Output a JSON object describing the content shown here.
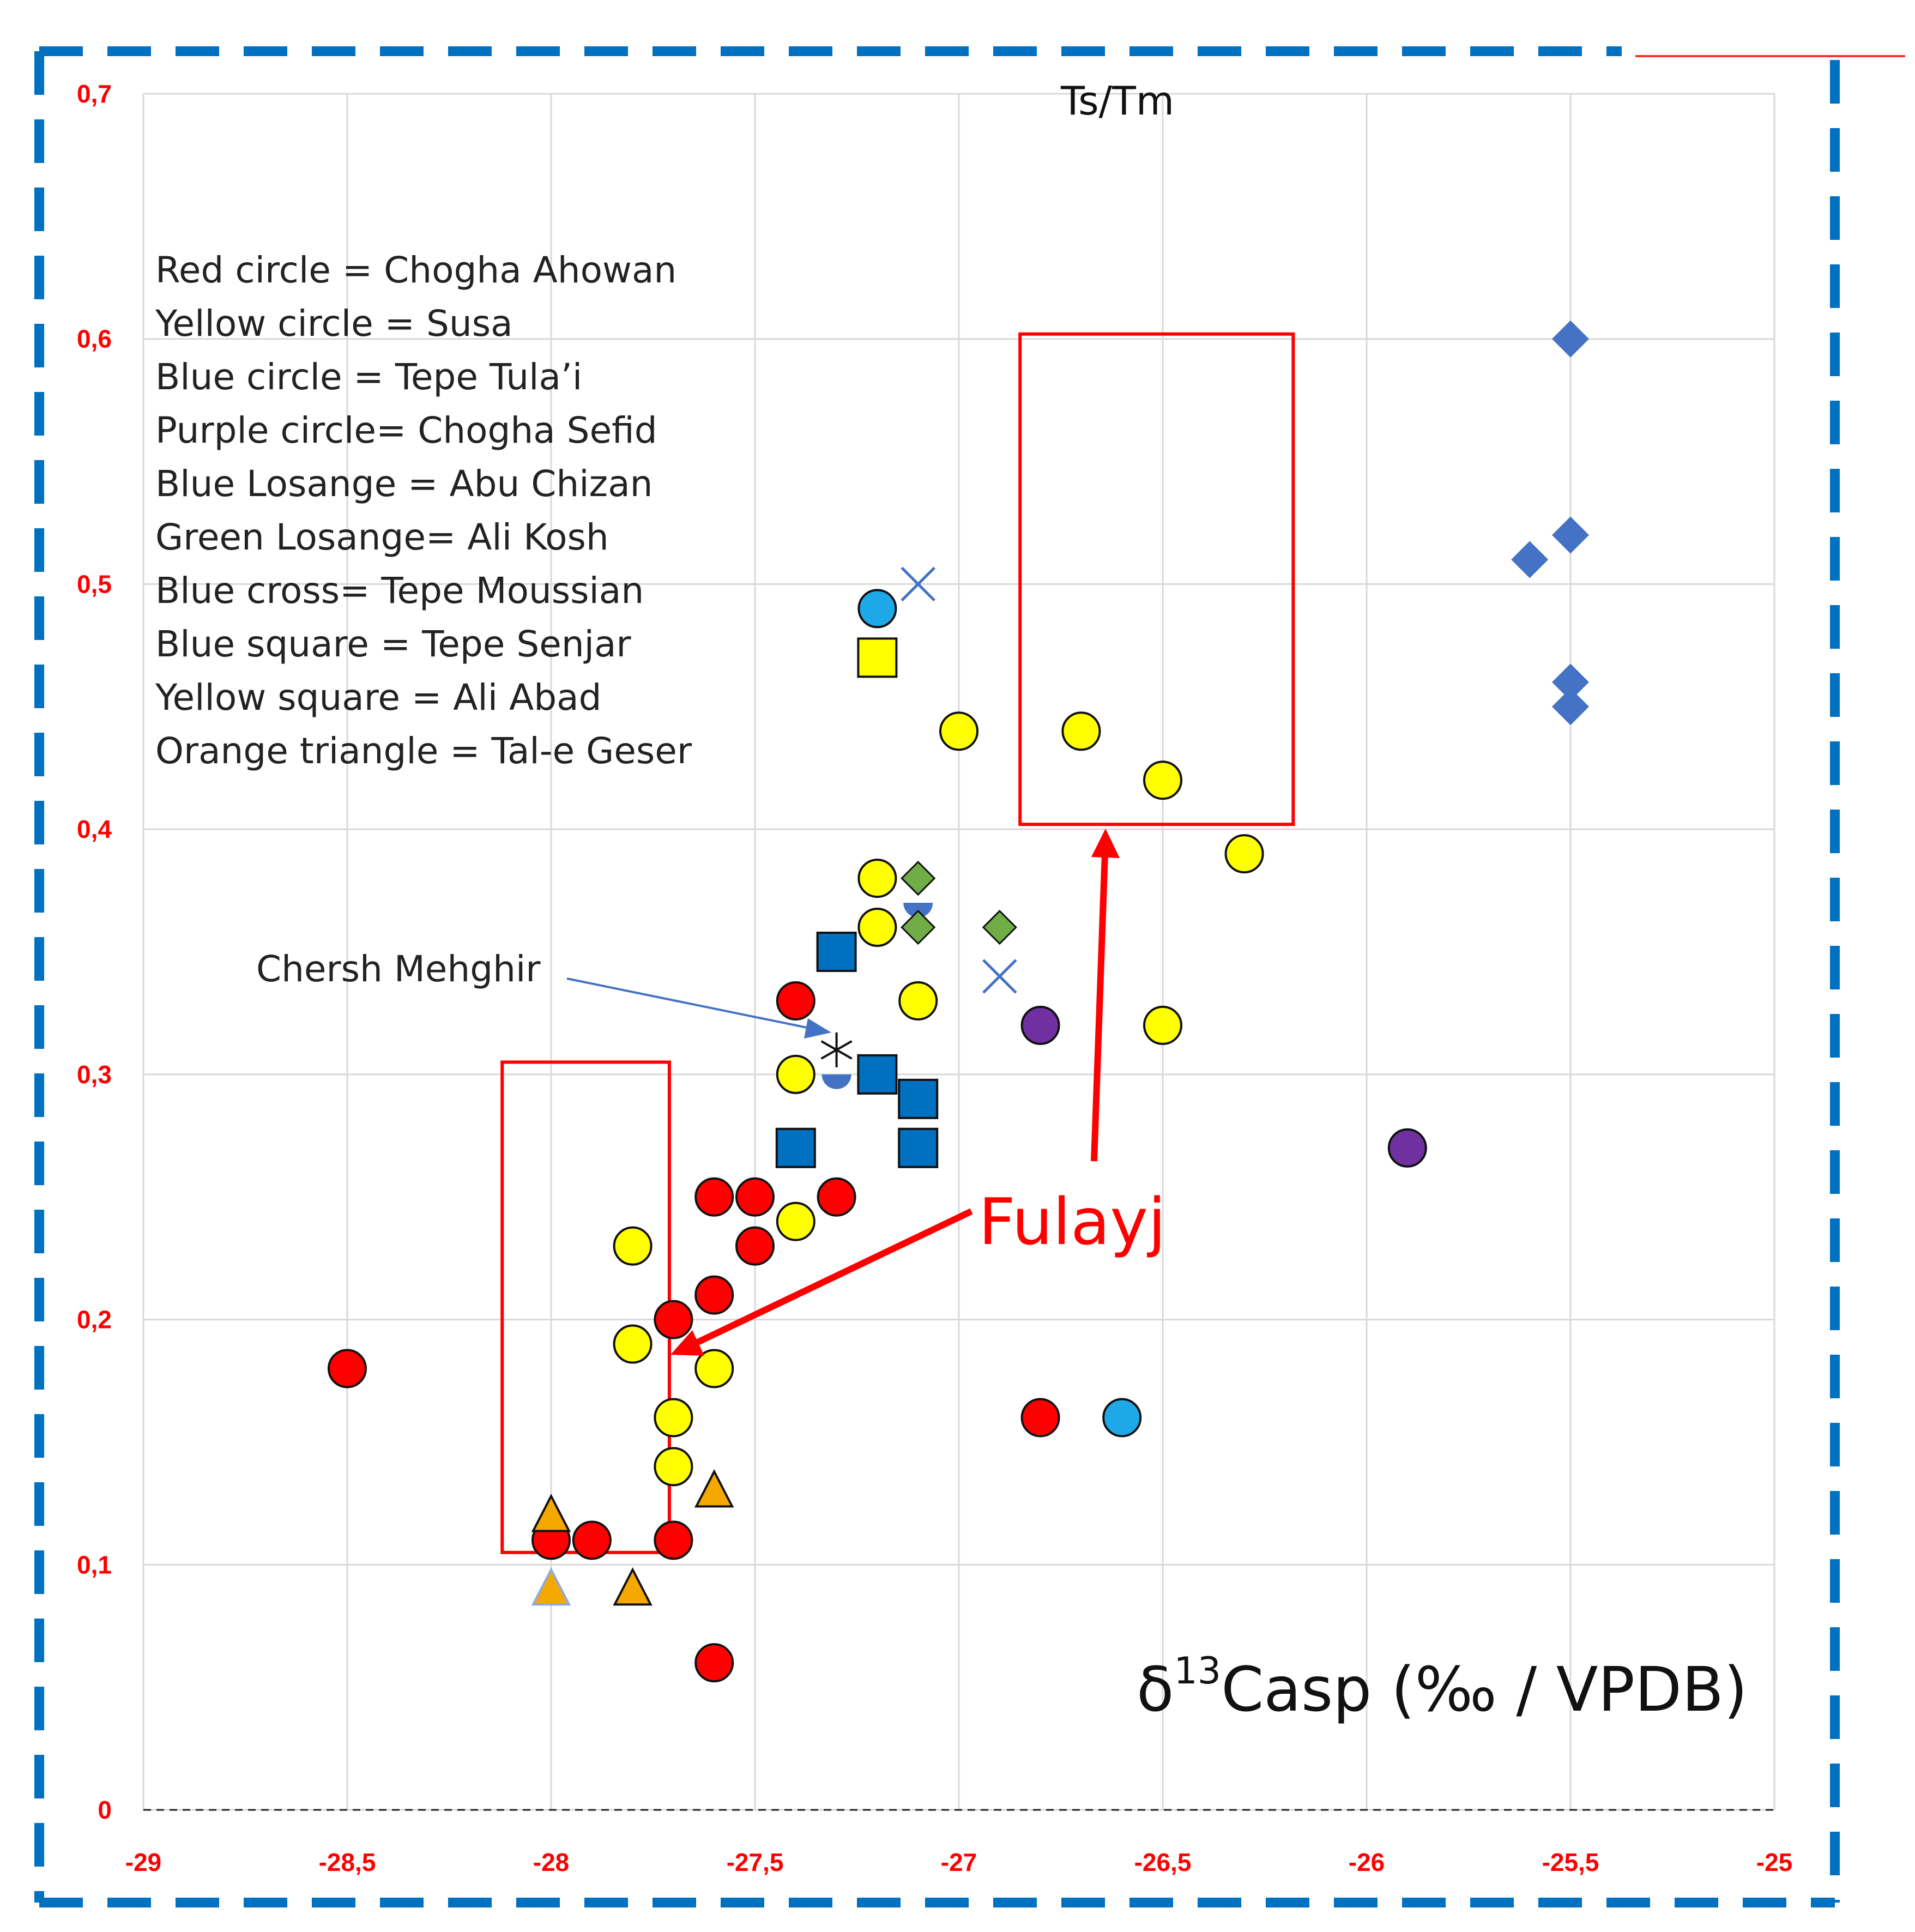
{
  "chart_data": {
    "type": "scatter",
    "title": "Ts/Tm",
    "xlabel": "δ13Casp (‰ / VPDB)",
    "xlabel_parts": {
      "delta": "δ",
      "sup": "13",
      "rest": "Casp (‰ / VPDB)"
    },
    "ylabel": "",
    "xlim": [
      -29,
      -25
    ],
    "ylim": [
      0,
      0.7
    ],
    "grid": true,
    "x_ticks": [
      -29,
      -28.5,
      -28,
      -27.5,
      -27,
      -26.5,
      -26,
      -25.5,
      -25
    ],
    "x_tick_labels": [
      "-29",
      "-28,5",
      "-28",
      "-27,5",
      "-27",
      "-26,5",
      "-26",
      "-25,5",
      "-25"
    ],
    "y_ticks": [
      0,
      0.1,
      0.2,
      0.3,
      0.4,
      0.5,
      0.6,
      0.7
    ],
    "y_tick_labels": [
      "0",
      "0,1",
      "0,2",
      "0,3",
      "0,4",
      "0,5",
      "0,6",
      "0,7"
    ],
    "legend": [
      "Red circle = Chogha Ahowan",
      "Yellow circle = Susa",
      "Blue circle = Tepe Tula’i",
      "Purple circle= Chogha Sefid",
      "Blue Losange = Abu Chizan",
      "Green Losange= Ali Kosh",
      "Blue cross= Tepe Moussian",
      "Blue square = Tepe Senjar",
      "Yellow square = Ali Abad",
      "Orange triangle = Tal-e Geser"
    ],
    "series": [
      {
        "name": "Chogha Ahowan",
        "marker": "circle",
        "color": "#ff0000",
        "points": [
          [
            -28.5,
            0.18
          ],
          [
            -28,
            0.11
          ],
          [
            -27.9,
            0.11
          ],
          [
            -27.7,
            0.11
          ],
          [
            -27.7,
            0.2
          ],
          [
            -27.6,
            0.21
          ],
          [
            -27.6,
            0.25
          ],
          [
            -27.5,
            0.25
          ],
          [
            -27.5,
            0.23
          ],
          [
            -27.4,
            0.33
          ],
          [
            -27.3,
            0.25
          ],
          [
            -27.6,
            0.06
          ],
          [
            -26.8,
            0.16
          ]
        ]
      },
      {
        "name": "Susa",
        "marker": "circle",
        "color": "#ffff00",
        "points": [
          [
            -27.8,
            0.23
          ],
          [
            -27.8,
            0.19
          ],
          [
            -27.7,
            0.16
          ],
          [
            -27.7,
            0.14
          ],
          [
            -27.6,
            0.18
          ],
          [
            -27.4,
            0.3
          ],
          [
            -27.4,
            0.24
          ],
          [
            -27.2,
            0.38
          ],
          [
            -27.2,
            0.36
          ],
          [
            -27.1,
            0.33
          ],
          [
            -27,
            0.44
          ],
          [
            -26.7,
            0.44
          ],
          [
            -26.5,
            0.42
          ],
          [
            -26.3,
            0.39
          ],
          [
            -26.5,
            0.32
          ]
        ]
      },
      {
        "name": "Tepe Tula’i",
        "marker": "circle",
        "color": "#1ea8e8",
        "points": [
          [
            -27.2,
            0.49
          ],
          [
            -26.6,
            0.16
          ]
        ]
      },
      {
        "name": "Tepe Tula’i (half)",
        "marker": "half-circle",
        "color": "#4472c4",
        "points": [
          [
            -27.1,
            0.37
          ],
          [
            -27.3,
            0.3
          ]
        ]
      },
      {
        "name": "Chogha Sefid",
        "marker": "circle",
        "color": "#7030a0",
        "points": [
          [
            -26.8,
            0.32
          ],
          [
            -25.9,
            0.27
          ]
        ]
      },
      {
        "name": "Abu Chizan",
        "marker": "diamond",
        "color": "#4472c4",
        "points": [
          [
            -25.5,
            0.6
          ],
          [
            -25.5,
            0.52
          ],
          [
            -25.6,
            0.51
          ],
          [
            -25.5,
            0.46
          ],
          [
            -25.5,
            0.45
          ]
        ]
      },
      {
        "name": "Ali Kosh",
        "marker": "diamond",
        "color": "#70ad47",
        "points": [
          [
            -27.1,
            0.38
          ],
          [
            -27.1,
            0.36
          ],
          [
            -26.9,
            0.36
          ]
        ]
      },
      {
        "name": "Tepe Moussian",
        "marker": "cross",
        "color": "#4472c4",
        "points": [
          [
            -27.1,
            0.5
          ],
          [
            -26.9,
            0.34
          ]
        ]
      },
      {
        "name": "Tepe Senjar",
        "marker": "square",
        "color": "#0070c0",
        "points": [
          [
            -27.3,
            0.35
          ],
          [
            -27.2,
            0.3
          ],
          [
            -27.1,
            0.29
          ],
          [
            -27.4,
            0.27
          ],
          [
            -27.1,
            0.27
          ]
        ]
      },
      {
        "name": "Ali Abad",
        "marker": "square",
        "color": "#ffff00",
        "points": [
          [
            -27.2,
            0.47
          ]
        ]
      },
      {
        "name": "Tal-e Geser",
        "marker": "triangle",
        "color": "#f5a800",
        "points": [
          [
            -28,
            0.12
          ],
          [
            -27.6,
            0.13
          ],
          [
            -27.8,
            0.09
          ]
        ]
      },
      {
        "name": "Tal-e Geser (light)",
        "marker": "triangle-light",
        "color": "#f5a800",
        "points": [
          [
            -28,
            0.09
          ]
        ]
      },
      {
        "name": "Chersh Mehghir",
        "marker": "star",
        "color": "#111111",
        "points": [
          [
            -27.3,
            0.31
          ]
        ]
      }
    ],
    "annotations": {
      "chersh_label": "Chersh Mehghir",
      "fulayj_label": "Fulayj",
      "boxes": [
        {
          "name": "fulayj-box-upper",
          "x": [
            -26.85,
            -26.18
          ],
          "y": [
            0.402,
            0.602
          ]
        },
        {
          "name": "fulayj-box-lower",
          "x": [
            -28.12,
            -27.71
          ],
          "y": [
            0.105,
            0.305
          ]
        }
      ]
    }
  }
}
